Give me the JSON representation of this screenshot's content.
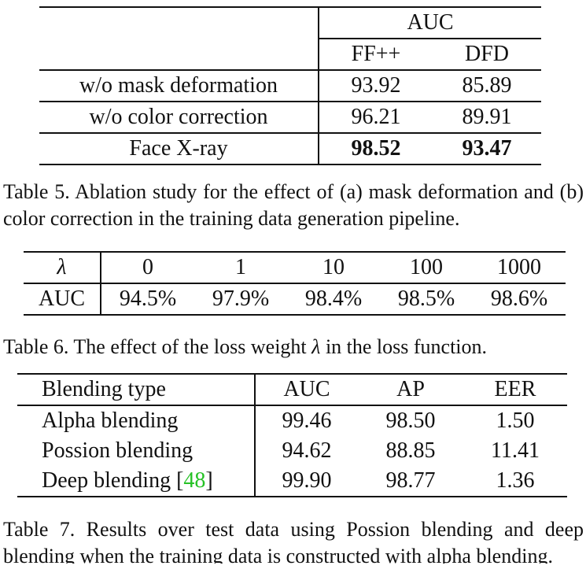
{
  "table5": {
    "group_header": "AUC",
    "columns": [
      "FF++",
      "DFD"
    ],
    "rows": [
      {
        "label": "w/o mask deformation",
        "ff": "93.92",
        "dfd": "85.89"
      },
      {
        "label": "w/o color correction",
        "ff": "96.21",
        "dfd": "89.91"
      },
      {
        "label": "Face X-ray",
        "ff": "98.52",
        "dfd": "93.47"
      }
    ],
    "caption": "Table 5. Ablation study for the effect of (a) mask deformation and (b) color correction in the training data generation pipeline."
  },
  "table6": {
    "header_label": "λ",
    "headers": [
      "0",
      "1",
      "10",
      "100",
      "1000"
    ],
    "row_label": "AUC",
    "values": [
      "94.5%",
      "97.9%",
      "98.4%",
      "98.5%",
      "98.6%"
    ],
    "caption_pre": "Table 6. The effect of the loss weight ",
    "caption_lambda": "λ",
    "caption_post": " in the loss function."
  },
  "table7": {
    "headers": [
      "Blending type",
      "AUC",
      "AP",
      "EER"
    ],
    "rows": [
      {
        "name": "Alpha blending",
        "auc": "99.46",
        "ap": "98.50",
        "eer": "1.50"
      },
      {
        "name": "Possion blending",
        "auc": "94.62",
        "ap": "88.85",
        "eer": "11.41"
      },
      {
        "name": "Deep blending",
        "cite": "48",
        "auc": "99.90",
        "ap": "98.77",
        "eer": "1.36"
      }
    ],
    "caption": "Table 7. Results over test data using Possion blending and deep blending when the training data is constructed with alpha blending."
  }
}
